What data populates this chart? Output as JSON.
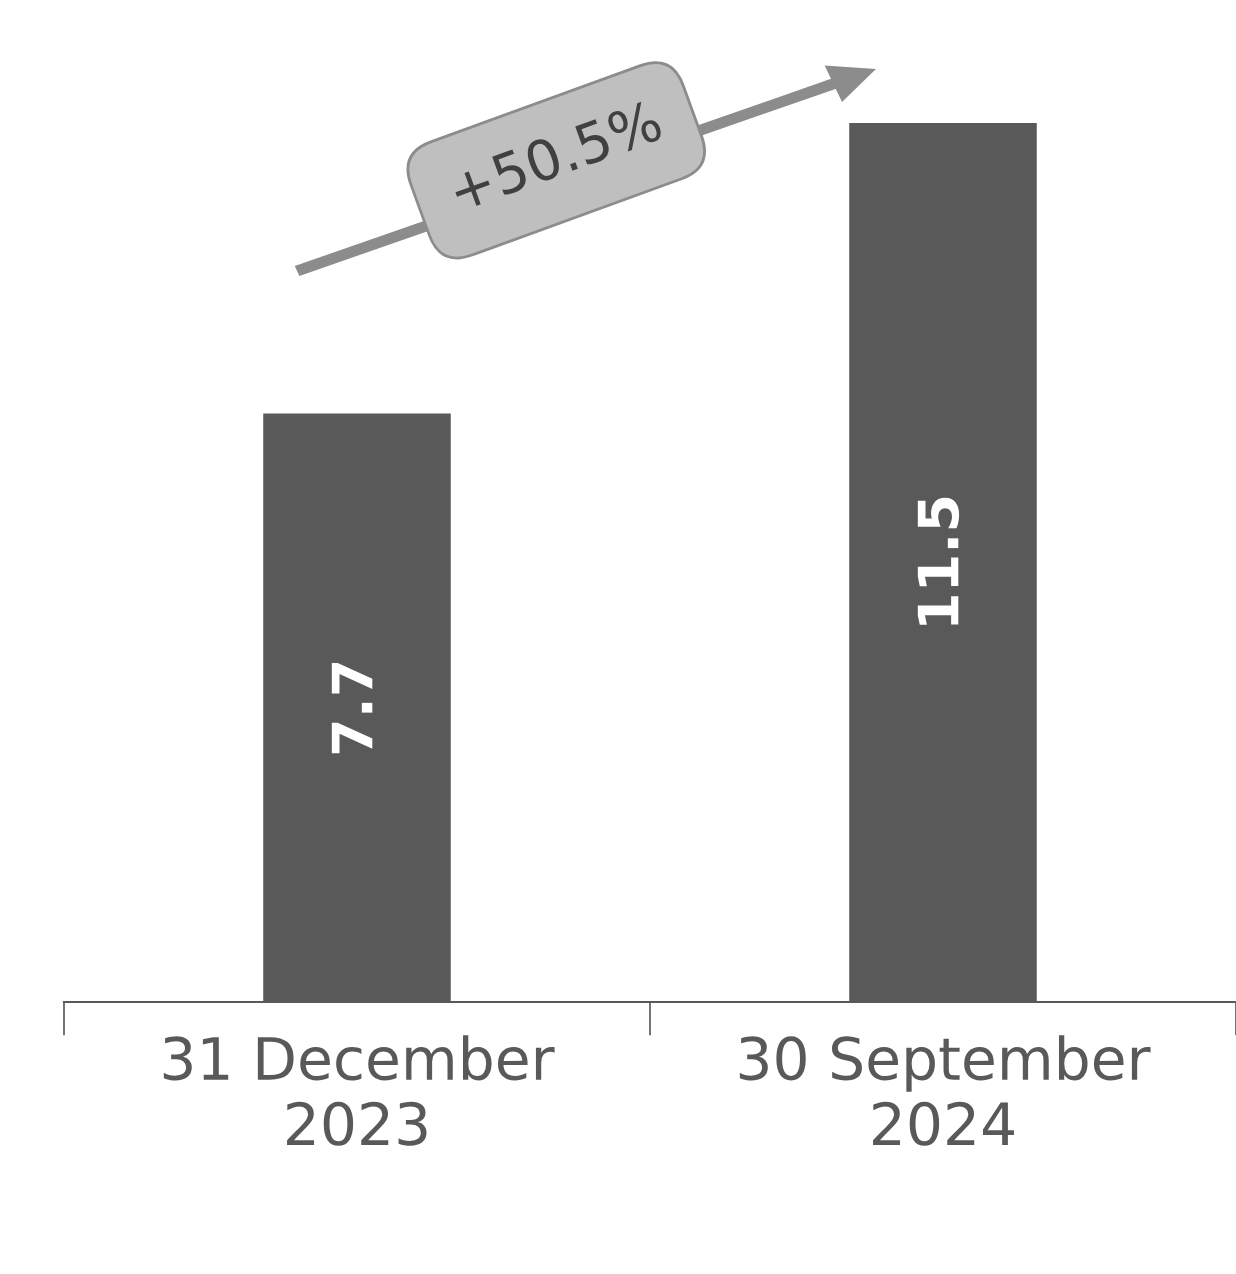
{
  "chart_data": {
    "type": "bar",
    "categories": [
      "31 December\n2023",
      "30 September\n2024"
    ],
    "values": [
      7.7,
      11.5
    ],
    "color": "#595959",
    "data_labels": true,
    "annotations": [
      "+50.5%"
    ]
  }
}
